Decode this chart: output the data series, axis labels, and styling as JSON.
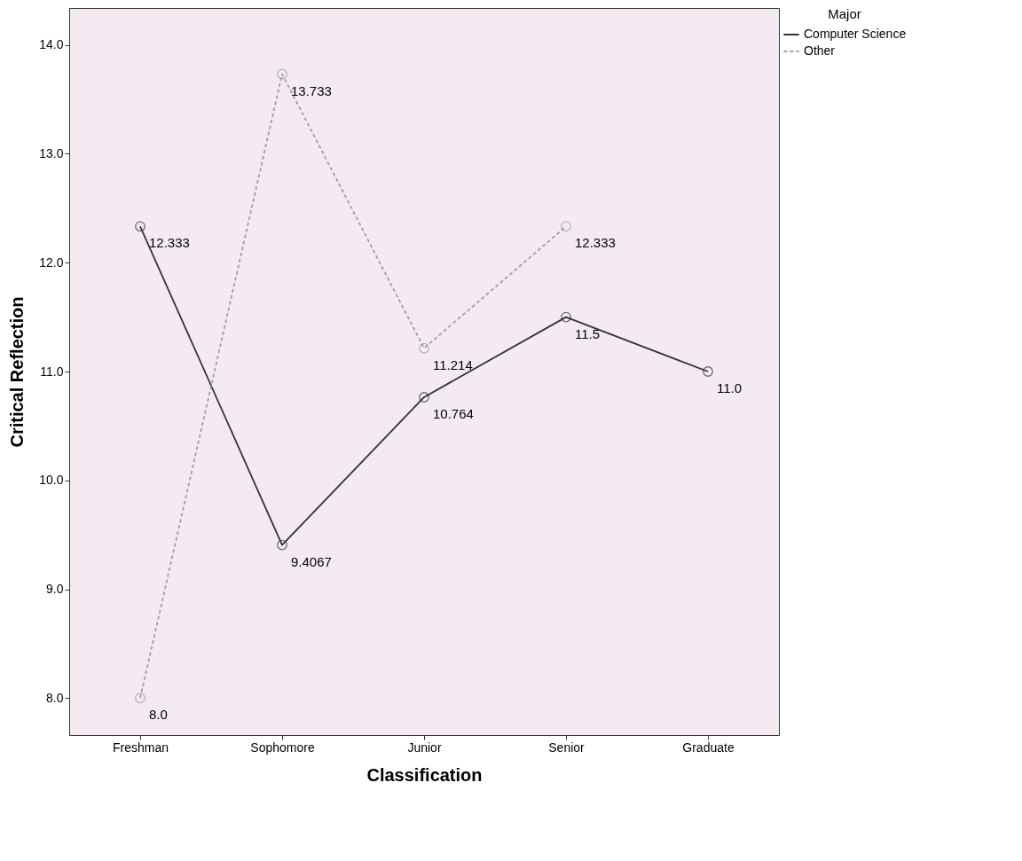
{
  "chart_data": {
    "type": "line",
    "xlabel": "Classification",
    "ylabel": "Critical Reflection",
    "legend_title": "Major",
    "categories": [
      "Freshman",
      "Sophomore",
      "Junior",
      "Senior",
      "Graduate"
    ],
    "series": [
      {
        "name": "Computer Science",
        "color": "#333333",
        "line_style": "solid",
        "values": [
          12.333,
          9.4067,
          10.764,
          11.5,
          11.0
        ],
        "value_labels": [
          "12.333",
          "9.4067",
          "10.764",
          "11.5",
          "11.0"
        ]
      },
      {
        "name": "Other",
        "color": "#a0a0a0",
        "line_style": "dashed",
        "values": [
          8.0,
          13.733,
          11.214,
          12.333,
          null
        ],
        "value_labels": [
          "8.0",
          "13.733",
          "11.214",
          "12.333",
          null
        ]
      }
    ],
    "ylim": [
      7.66,
      14.34
    ],
    "yticks": [
      {
        "value": 8,
        "label": "8.0"
      },
      {
        "value": 9,
        "label": "9.0"
      },
      {
        "value": 10,
        "label": "10.0"
      },
      {
        "value": 11,
        "label": "11.0"
      },
      {
        "value": 12,
        "label": "12.0"
      },
      {
        "value": 13,
        "label": "13.0"
      },
      {
        "value": 14,
        "label": "14.0"
      }
    ],
    "marker": "circle",
    "grid": false,
    "legend": "top right"
  }
}
